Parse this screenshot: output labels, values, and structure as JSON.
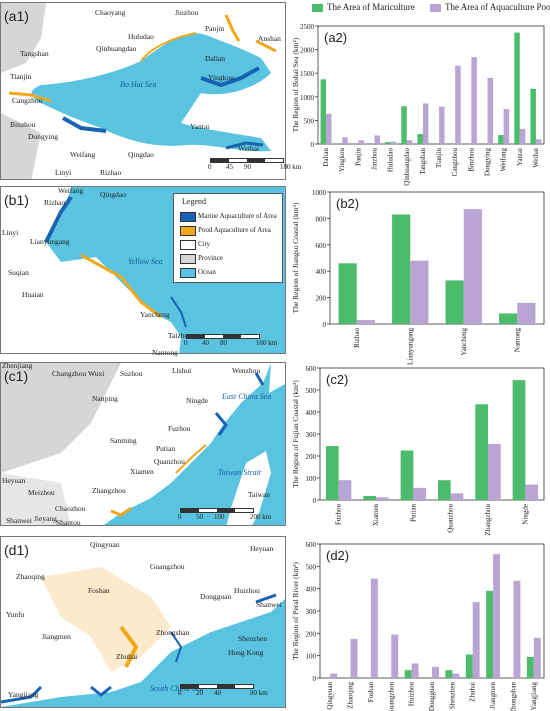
{
  "colors": {
    "mariculture": "#4cbb6c",
    "aquaculture_pond": "#b9a4d3",
    "marine_map": "#1763b4",
    "pond_map": "#f2a81c",
    "ocean": "#59c3e0",
    "city": "#ffffff",
    "province": "#d6d6d6"
  },
  "legend_top": {
    "mariculture": "The Area of Mariculture",
    "pond": "The Area of Aquaculture Pood"
  },
  "maps": [
    {
      "label": "(a1)",
      "sea": "Bo Hai Sea",
      "cities": [
        "Chaoyang",
        "Jinzhou",
        "Panjin",
        "Anshan",
        "Huludao",
        "Tangshan",
        "Qinhuangdao",
        "Dalian",
        "Yingkou",
        "Tianjin",
        "Cangzhou",
        "Binzhou",
        "Dongying",
        "Yantai",
        "Weihai",
        "Weifang",
        "Qingdao",
        "Linyi",
        "Rizhao"
      ],
      "scale": [
        "0",
        "45",
        "90",
        "180 km"
      ]
    },
    {
      "label": "(b1)",
      "sea": "Yellow Sea",
      "cities": [
        "Weifang",
        "Qingdao",
        "Rizhao",
        "Linyi",
        "Lianyungang",
        "Suqian",
        "Huaian",
        "Yancheng",
        "Taizhou",
        "Nantong",
        "Zhenjiang",
        "Changzhou",
        "Wuxi",
        "Suzhou"
      ],
      "legend": {
        "title": "Legend",
        "items": [
          "Marine Aquaculture of Area",
          "Pood Aquaculture of Area",
          "City",
          "Province",
          "Ocean"
        ]
      },
      "scale": [
        "0",
        "40",
        "80",
        "160 km"
      ]
    },
    {
      "label": "(c1)",
      "seas": [
        "East China Sea",
        "Taiwan Strait"
      ],
      "cities": [
        "Lishui",
        "Wenzhou",
        "Nanping",
        "Ningde",
        "Fuzhou",
        "Sanming",
        "Putian",
        "Quanzhou",
        "Xiamen",
        "Heyuan",
        "Meizhou",
        "Zhangzhou",
        "Chaozhou",
        "Jieyang",
        "Shantou",
        "Shanwei",
        "Taiwan"
      ],
      "scale": [
        "0",
        "50",
        "100",
        "200 km"
      ]
    },
    {
      "label": "(d1)",
      "sea": "South China Sea",
      "cities": [
        "Qingyuan",
        "Heyuan",
        "Guangzhou",
        "Zhaoqing",
        "Foshan",
        "Huizhou",
        "Dongguan",
        "Yunfu",
        "Shanwei",
        "Jiangmen",
        "Zhongshan",
        "Shenzhen",
        "Hong Kong",
        "Zhuhai",
        "Yangjiang"
      ],
      "scale": [
        "0",
        "20",
        "40",
        "80 km"
      ]
    }
  ],
  "chart_data": [
    {
      "label": "(a2)",
      "type": "bar",
      "ylabel": "The Region of Bohai Sea (km²)",
      "ylim": [
        0,
        2500
      ],
      "yticks": [
        0,
        500,
        1000,
        1500,
        2000,
        2500
      ],
      "categories": [
        "Dalian",
        "Yingkou",
        "Panjin",
        "Jinzhou",
        "Huludao",
        "Qinhuangdao",
        "Tangshan",
        "Tianjin",
        "Cangzhou",
        "Binzhou",
        "Dongying",
        "Weifang",
        "Yantai",
        "Weihai"
      ],
      "series": [
        {
          "name": "The Area of Mariculture",
          "values": [
            1370,
            0,
            0,
            0,
            40,
            800,
            210,
            0,
            0,
            0,
            0,
            190,
            2360,
            1170
          ]
        },
        {
          "name": "The Area of Aquaculture Pood",
          "values": [
            640,
            140,
            80,
            180,
            50,
            80,
            860,
            790,
            1660,
            1840,
            1400,
            740,
            320,
            100
          ]
        }
      ]
    },
    {
      "label": "(b2)",
      "type": "bar",
      "ylabel": "The Region of Jiangsu Coastal (km²)",
      "ylim": [
        0,
        1000
      ],
      "yticks": [
        0,
        200,
        400,
        600,
        800,
        1000
      ],
      "categories": [
        "Rizhao",
        "Lianyungang",
        "Yancheng",
        "Nantong"
      ],
      "series": [
        {
          "name": "The Area of Mariculture",
          "values": [
            460,
            830,
            330,
            80
          ]
        },
        {
          "name": "The Area of Aquaculture Pood",
          "values": [
            30,
            480,
            870,
            160
          ]
        }
      ]
    },
    {
      "label": "(c2)",
      "type": "bar",
      "ylabel": "The Region of Fujian Coastal (km²)",
      "ylim": [
        0,
        600
      ],
      "yticks": [
        0,
        100,
        200,
        300,
        400,
        500,
        600
      ],
      "categories": [
        "Fuzhou",
        "Xiamen",
        "Putian",
        "Quanzhou",
        "Zhangzhou",
        "Ningde"
      ],
      "series": [
        {
          "name": "The Area of Mariculture",
          "values": [
            245,
            18,
            225,
            90,
            435,
            545
          ]
        },
        {
          "name": "The Area of Aquaculture Pood",
          "values": [
            90,
            12,
            55,
            30,
            255,
            70
          ]
        }
      ]
    },
    {
      "label": "(d2)",
      "type": "bar",
      "ylabel": "The Region of Peral River (km²)",
      "ylim": [
        0,
        600
      ],
      "yticks": [
        0,
        100,
        200,
        300,
        400,
        500,
        600
      ],
      "categories": [
        "Qingyuan",
        "Zhaoqing",
        "Foshan",
        "Guangzhou",
        "Huizhou",
        "Dongguan",
        "Shenzhen",
        "Zhuhai",
        "Jiangmen",
        "Zhongshan",
        "Yangjiang"
      ],
      "series": [
        {
          "name": "The Area of Mariculture",
          "values": [
            0,
            0,
            0,
            0,
            35,
            0,
            35,
            105,
            390,
            0,
            95
          ]
        },
        {
          "name": "The Area of Aquaculture Pood",
          "values": [
            20,
            175,
            445,
            195,
            65,
            50,
            20,
            340,
            555,
            435,
            180
          ]
        }
      ]
    }
  ]
}
